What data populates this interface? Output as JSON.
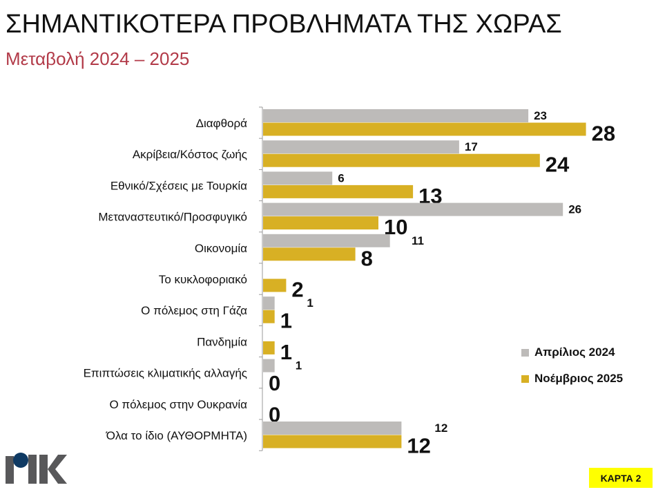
{
  "title": "ΣΗΜΑΝΤΙΚΟΤΕΡΑ ΠΡΟΒΛΗΜΑΤΑ ΤΗΣ ΧΩΡΑΣ",
  "subtitle": "Μεταβολή 2024 – 2025",
  "badge": "ΚΑΡΤΑ 2",
  "logo_text": "ΡΙΚ",
  "colors": {
    "april": "#bdbbb9",
    "november": "#d8b024",
    "subtitle": "#b23a48"
  },
  "chart_data": {
    "type": "bar",
    "orientation": "horizontal",
    "categories": [
      "Διαφθορά",
      "Ακρίβεια/Κόστος ζωής",
      "Εθνικό/Σχέσεις με Τουρκία",
      "Μεταναστευτικό/Προσφυγικό",
      "Οικονομία",
      "Το κυκλοφοριακό",
      "Ο πόλεμος στη Γάζα",
      "Πανδημία",
      "Επιπτώσεις κλιματικής αλλαγής",
      "Ο πόλεμος στην Ουκρανία",
      "Όλα το ίδιο (ΑΥΘΟΡΜΗΤΑ)"
    ],
    "series": [
      {
        "name": "Απρίλιος 2024",
        "values": [
          23,
          17,
          6,
          26,
          11,
          null,
          1,
          null,
          1,
          null,
          12
        ]
      },
      {
        "name": "Νοέμβριος 2025",
        "values": [
          28,
          24,
          13,
          10,
          8,
          2,
          1,
          1,
          0,
          0,
          12
        ]
      }
    ],
    "xlim": [
      0,
      28
    ],
    "grid": false,
    "legend": "bottom-right"
  }
}
